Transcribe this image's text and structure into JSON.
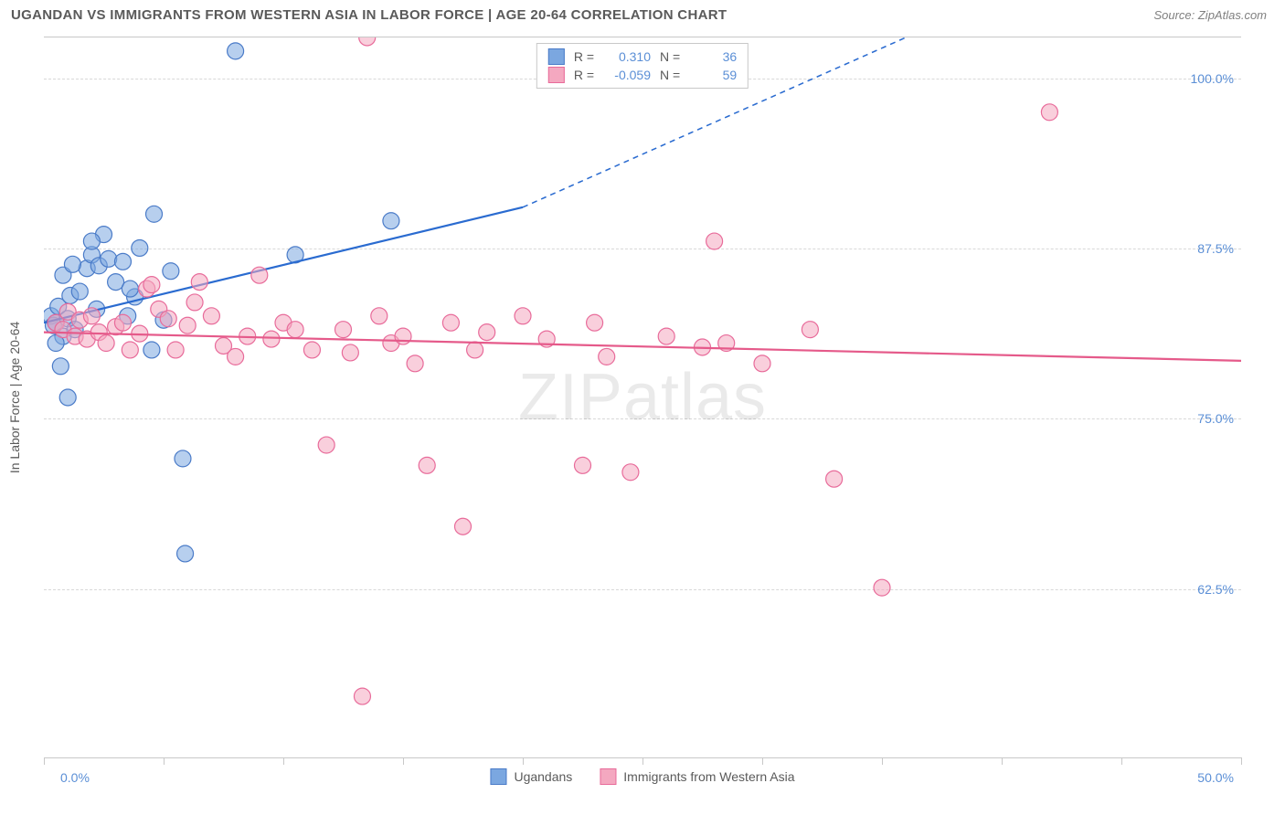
{
  "header": {
    "title": "UGANDAN VS IMMIGRANTS FROM WESTERN ASIA IN LABOR FORCE | AGE 20-64 CORRELATION CHART",
    "source": "Source: ZipAtlas.com"
  },
  "chart": {
    "type": "scatter",
    "yaxis_title": "In Labor Force | Age 20-64",
    "xlim": [
      0,
      50
    ],
    "ylim": [
      50,
      103
    ],
    "xtick_positions": [
      0,
      5,
      10,
      15,
      20,
      25,
      30,
      35,
      40,
      45,
      50
    ],
    "xaxis_label_left": "0.0%",
    "xaxis_label_right": "50.0%",
    "yticks": [
      {
        "value": 62.5,
        "label": "62.5%"
      },
      {
        "value": 75.0,
        "label": "75.0%"
      },
      {
        "value": 87.5,
        "label": "87.5%"
      },
      {
        "value": 100.0,
        "label": "100.0%"
      }
    ],
    "background_color": "#ffffff",
    "grid_color": "#d8d8d8",
    "axis_color": "#c8c8c8",
    "tick_label_color": "#5b8fd6",
    "marker_radius": 9,
    "marker_opacity": 0.55,
    "line_width": 2.2,
    "watermark": "ZIPatlas",
    "series": [
      {
        "name": "Ugandans",
        "fill": "#7ba7e0",
        "stroke": "#4a7bc8",
        "line_color": "#2a6bd0",
        "r_value": "0.310",
        "n_value": "36",
        "regression": {
          "x1": 0,
          "y1": 82,
          "x2_solid": 20,
          "y2_solid": 90.5,
          "x2": 36,
          "y2": 103
        },
        "points": [
          [
            0.3,
            82.5
          ],
          [
            0.4,
            81.8
          ],
          [
            0.6,
            83.2
          ],
          [
            0.5,
            82.0
          ],
          [
            0.8,
            81.0
          ],
          [
            0.7,
            78.8
          ],
          [
            1.0,
            82.3
          ],
          [
            1.1,
            84.0
          ],
          [
            1.3,
            81.5
          ],
          [
            1.5,
            84.3
          ],
          [
            1.8,
            86.0
          ],
          [
            2.0,
            87.0
          ],
          [
            2.3,
            86.2
          ],
          [
            2.5,
            88.5
          ],
          [
            2.7,
            86.7
          ],
          [
            3.0,
            85.0
          ],
          [
            3.3,
            86.5
          ],
          [
            3.8,
            83.9
          ],
          [
            3.5,
            82.5
          ],
          [
            4.0,
            87.5
          ],
          [
            4.5,
            80.0
          ],
          [
            4.6,
            90.0
          ],
          [
            5.0,
            82.2
          ],
          [
            5.3,
            85.8
          ],
          [
            5.8,
            72.0
          ],
          [
            5.9,
            65.0
          ],
          [
            8.0,
            102.0
          ],
          [
            10.5,
            87.0
          ],
          [
            14.5,
            89.5
          ],
          [
            1.0,
            76.5
          ],
          [
            0.8,
            85.5
          ],
          [
            1.2,
            86.3
          ],
          [
            2.0,
            88.0
          ],
          [
            0.5,
            80.5
          ],
          [
            3.6,
            84.5
          ],
          [
            2.2,
            83.0
          ]
        ]
      },
      {
        "name": "Immigrants from Western Asia",
        "fill": "#f4a8c0",
        "stroke": "#e86b9a",
        "line_color": "#e55a8a",
        "r_value": "-0.059",
        "n_value": "59",
        "regression": {
          "x1": 0,
          "y1": 81.3,
          "x2_solid": 50,
          "y2_solid": 79.2,
          "x2": 50,
          "y2": 79.2
        },
        "points": [
          [
            0.5,
            82.0
          ],
          [
            0.8,
            81.5
          ],
          [
            1.0,
            82.8
          ],
          [
            1.3,
            81.0
          ],
          [
            1.5,
            82.2
          ],
          [
            1.8,
            80.8
          ],
          [
            2.0,
            82.5
          ],
          [
            2.3,
            81.3
          ],
          [
            2.6,
            80.5
          ],
          [
            3.0,
            81.7
          ],
          [
            3.3,
            82.0
          ],
          [
            3.6,
            80.0
          ],
          [
            4.0,
            81.2
          ],
          [
            4.3,
            84.5
          ],
          [
            4.8,
            83.0
          ],
          [
            5.2,
            82.3
          ],
          [
            5.5,
            80.0
          ],
          [
            6.0,
            81.8
          ],
          [
            6.5,
            85.0
          ],
          [
            7.0,
            82.5
          ],
          [
            7.5,
            80.3
          ],
          [
            8.0,
            79.5
          ],
          [
            8.5,
            81.0
          ],
          [
            9.0,
            85.5
          ],
          [
            9.5,
            80.8
          ],
          [
            10.0,
            82.0
          ],
          [
            10.5,
            81.5
          ],
          [
            11.2,
            80.0
          ],
          [
            11.8,
            73.0
          ],
          [
            12.5,
            81.5
          ],
          [
            12.8,
            79.8
          ],
          [
            13.5,
            103
          ],
          [
            13.3,
            54.5
          ],
          [
            14.0,
            82.5
          ],
          [
            14.5,
            80.5
          ],
          [
            15.0,
            81.0
          ],
          [
            15.5,
            79.0
          ],
          [
            16.0,
            71.5
          ],
          [
            17.0,
            82.0
          ],
          [
            17.5,
            67.0
          ],
          [
            18.0,
            80.0
          ],
          [
            18.5,
            81.3
          ],
          [
            20.0,
            82.5
          ],
          [
            21.0,
            80.8
          ],
          [
            22.5,
            71.5
          ],
          [
            23.0,
            82.0
          ],
          [
            23.5,
            79.5
          ],
          [
            24.5,
            71.0
          ],
          [
            26.0,
            81.0
          ],
          [
            27.5,
            80.2
          ],
          [
            28.0,
            88.0
          ],
          [
            28.5,
            80.5
          ],
          [
            30.0,
            79.0
          ],
          [
            32.0,
            81.5
          ],
          [
            33.0,
            70.5
          ],
          [
            35.0,
            62.5
          ],
          [
            42.0,
            97.5
          ],
          [
            6.3,
            83.5
          ],
          [
            4.5,
            84.8
          ]
        ]
      }
    ],
    "legend_bottom": [
      {
        "swatch_fill": "#7ba7e0",
        "swatch_stroke": "#4a7bc8",
        "label": "Ugandans"
      },
      {
        "swatch_fill": "#f4a8c0",
        "swatch_stroke": "#e86b9a",
        "label": "Immigrants from Western Asia"
      }
    ]
  }
}
